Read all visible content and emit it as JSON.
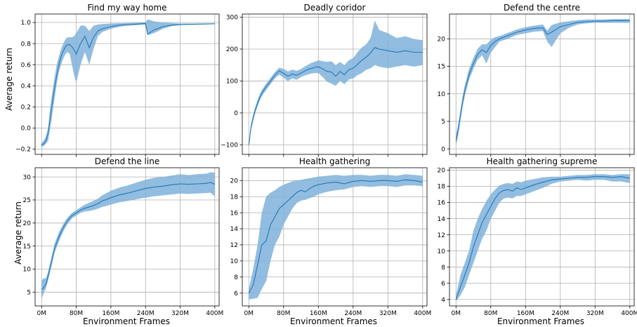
{
  "figure": {
    "xlabel": "Environment Frames",
    "ylabel": "Average return"
  },
  "chart_data": [
    {
      "type": "line",
      "title": "Find my way home",
      "xlim": [
        -15,
        410
      ],
      "ylim": [
        -0.25,
        1.08
      ],
      "yticks": [
        -0.2,
        0.0,
        0.2,
        0.4,
        0.6,
        0.8,
        1.0
      ],
      "ytick_labels": [
        "−0.2",
        "0.0",
        "0.2",
        "0.4",
        "0.6",
        "0.8",
        "1.0"
      ],
      "xticks": [
        0,
        80,
        160,
        240,
        320,
        400
      ],
      "xtick_labels": [],
      "grid": true,
      "series": [
        {
          "x": [
            0,
            5,
            10,
            15,
            20,
            25,
            30,
            35,
            40,
            45,
            50,
            55,
            60,
            65,
            70,
            75,
            80,
            90,
            100,
            110,
            120,
            130,
            140,
            160,
            180,
            200,
            220,
            240,
            245,
            260,
            280,
            300,
            320,
            340,
            360,
            380,
            400
          ],
          "y": [
            -0.16,
            -0.15,
            -0.12,
            -0.05,
            0.1,
            0.25,
            0.38,
            0.5,
            0.6,
            0.68,
            0.73,
            0.77,
            0.79,
            0.79,
            0.77,
            0.74,
            0.7,
            0.8,
            0.87,
            0.76,
            0.86,
            0.92,
            0.94,
            0.96,
            0.975,
            0.98,
            0.985,
            0.99,
            0.89,
            0.93,
            0.96,
            0.975,
            0.98,
            0.982,
            0.984,
            0.986,
            0.988
          ],
          "lower": [
            -0.18,
            -0.17,
            -0.15,
            -0.12,
            0.0,
            0.14,
            0.28,
            0.42,
            0.53,
            0.6,
            0.66,
            0.7,
            0.72,
            0.7,
            0.6,
            0.5,
            0.43,
            0.6,
            0.72,
            0.6,
            0.75,
            0.87,
            0.91,
            0.94,
            0.96,
            0.97,
            0.975,
            0.98,
            0.88,
            0.9,
            0.94,
            0.965,
            0.975,
            0.978,
            0.98,
            0.982,
            0.984
          ],
          "upper": [
            -0.14,
            -0.12,
            -0.08,
            0.0,
            0.2,
            0.35,
            0.48,
            0.6,
            0.68,
            0.75,
            0.8,
            0.84,
            0.86,
            0.86,
            0.86,
            0.87,
            0.9,
            0.97,
            0.97,
            0.92,
            0.97,
            0.98,
            0.985,
            0.99,
            0.993,
            0.995,
            0.997,
            1.0,
            1.03,
            1.01,
            1.0,
            0.995,
            0.99,
            0.99,
            0.99,
            0.99,
            0.99
          ]
        }
      ]
    },
    {
      "type": "line",
      "title": "Deadly coridor",
      "xlim": [
        -15,
        410
      ],
      "ylim": [
        -130,
        310
      ],
      "yticks": [
        -100,
        0,
        100,
        200,
        300
      ],
      "ytick_labels": [
        "−100",
        "0",
        "100",
        "200",
        "300"
      ],
      "xticks": [
        0,
        80,
        160,
        240,
        320,
        400
      ],
      "xtick_labels": [],
      "grid": true,
      "series": [
        {
          "x": [
            0,
            5,
            10,
            15,
            20,
            25,
            30,
            40,
            50,
            60,
            70,
            80,
            90,
            100,
            110,
            120,
            130,
            140,
            150,
            160,
            170,
            180,
            190,
            200,
            210,
            220,
            230,
            240,
            250,
            260,
            270,
            280,
            290,
            300,
            320,
            340,
            360,
            380,
            400
          ],
          "y": [
            -100,
            -45,
            -15,
            10,
            30,
            48,
            62,
            82,
            100,
            118,
            132,
            124,
            115,
            122,
            118,
            125,
            132,
            138,
            142,
            145,
            138,
            130,
            128,
            115,
            130,
            120,
            135,
            140,
            152,
            165,
            175,
            188,
            205,
            200,
            195,
            190,
            195,
            190,
            190
          ],
          "lower": [
            -105,
            -55,
            -25,
            0,
            20,
            38,
            52,
            72,
            90,
            108,
            120,
            110,
            100,
            108,
            104,
            112,
            118,
            122,
            125,
            125,
            112,
            98,
            92,
            85,
            100,
            90,
            105,
            108,
            118,
            125,
            135,
            140,
            150,
            145,
            140,
            145,
            150,
            145,
            150
          ],
          "upper": [
            -95,
            -35,
            -5,
            20,
            40,
            58,
            72,
            92,
            110,
            128,
            142,
            138,
            130,
            136,
            132,
            138,
            146,
            154,
            160,
            165,
            162,
            160,
            162,
            150,
            160,
            150,
            165,
            172,
            190,
            205,
            215,
            235,
            290,
            260,
            250,
            235,
            240,
            232,
            228
          ]
        }
      ]
    },
    {
      "type": "line",
      "title": "Defend the centre",
      "xlim": [
        -15,
        410
      ],
      "ylim": [
        -1,
        24.5
      ],
      "yticks": [
        0,
        5,
        10,
        15,
        20
      ],
      "ytick_labels": [
        "0",
        "5",
        "10",
        "15",
        "20"
      ],
      "xticks": [
        0,
        80,
        160,
        240,
        320,
        400
      ],
      "xtick_labels": [],
      "grid": true,
      "series": [
        {
          "x": [
            0,
            5,
            10,
            15,
            20,
            30,
            40,
            50,
            60,
            70,
            80,
            90,
            100,
            120,
            140,
            160,
            180,
            200,
            210,
            220,
            240,
            260,
            280,
            300,
            320,
            340,
            360,
            380,
            400
          ],
          "y": [
            1.5,
            3.5,
            6,
            8.5,
            10.5,
            13.5,
            15.5,
            17.2,
            18,
            17.5,
            18.8,
            19.5,
            20,
            20.6,
            21.2,
            21.6,
            21.9,
            22,
            20.8,
            21.2,
            22.2,
            22.6,
            23,
            23.1,
            23.2,
            23.2,
            23.3,
            23.3,
            23.3
          ],
          "lower": [
            0.5,
            2.5,
            5,
            7.5,
            9.5,
            12.5,
            14.5,
            16.2,
            17,
            15.5,
            17.5,
            18.5,
            19.5,
            20,
            20.7,
            21,
            21.3,
            21.4,
            19.5,
            18.5,
            21,
            22,
            22.6,
            22.8,
            22.9,
            22.9,
            22.9,
            22.9,
            22.9
          ],
          "upper": [
            2.5,
            4.5,
            7,
            9.5,
            11.5,
            14.5,
            16.5,
            18.2,
            19,
            19,
            19.8,
            20.3,
            20.5,
            21.1,
            21.7,
            22.1,
            22.4,
            22.6,
            21.5,
            22.5,
            23,
            23.2,
            23.4,
            23.5,
            23.5,
            23.5,
            23.6,
            23.6,
            23.6
          ]
        }
      ]
    },
    {
      "type": "line",
      "title": "Defend the line",
      "xlim": [
        -15,
        410
      ],
      "ylim": [
        2,
        32
      ],
      "yticks": [
        5,
        10,
        15,
        20,
        25,
        30
      ],
      "ytick_labels": [
        "5",
        "10",
        "15",
        "20",
        "25",
        "30"
      ],
      "xticks": [
        0,
        80,
        160,
        240,
        320,
        400
      ],
      "xtick_labels": [
        "0M",
        "80M",
        "160M",
        "240M",
        "320M",
        "400M"
      ],
      "grid": true,
      "series": [
        {
          "x": [
            0,
            5,
            10,
            15,
            20,
            25,
            30,
            40,
            50,
            60,
            70,
            80,
            90,
            100,
            110,
            120,
            130,
            140,
            150,
            160,
            180,
            200,
            220,
            240,
            260,
            280,
            300,
            320,
            340,
            360,
            380,
            390,
            400
          ],
          "y": [
            5.5,
            6,
            6.8,
            8.5,
            10.5,
            12.5,
            14.5,
            17,
            19,
            20.5,
            21.6,
            22.2,
            22.8,
            23.2,
            23.5,
            23.8,
            24.2,
            24.8,
            25.1,
            25.5,
            26.1,
            26.5,
            27,
            27.5,
            27.8,
            28,
            28.3,
            28.5,
            28.4,
            28.5,
            28.6,
            28.8,
            28.4
          ],
          "lower": [
            3.5,
            4.8,
            5.8,
            7.5,
            9.5,
            11.5,
            13.5,
            16,
            18.2,
            19.8,
            21,
            21.6,
            22.2,
            22.5,
            22.6,
            22.8,
            23.1,
            23.5,
            23.7,
            24,
            24.5,
            24.8,
            25.2,
            25.5,
            25.8,
            26,
            26.2,
            26.4,
            26.3,
            26.4,
            26.5,
            26.6,
            25.8
          ],
          "upper": [
            7.5,
            8,
            8,
            9.5,
            11.5,
            13.5,
            15.5,
            18,
            19.8,
            21.2,
            22.2,
            22.8,
            23.4,
            24,
            24.4,
            24.8,
            25.3,
            26,
            26.5,
            27,
            27.7,
            28.2,
            28.8,
            29.4,
            29.8,
            30,
            30.3,
            30.6,
            30.4,
            30.6,
            30.7,
            31,
            31
          ]
        }
      ]
    },
    {
      "type": "line",
      "title": "Health gathering",
      "xlim": [
        -15,
        410
      ],
      "ylim": [
        4.4,
        21.6
      ],
      "yticks": [
        6,
        8,
        10,
        12,
        14,
        16,
        18,
        20
      ],
      "ytick_labels": [
        "6",
        "8",
        "10",
        "12",
        "14",
        "16",
        "18",
        "20"
      ],
      "xticks": [
        0,
        80,
        160,
        240,
        320,
        400
      ],
      "xtick_labels": [
        "0M",
        "80M",
        "160M",
        "240M",
        "320M",
        "400M"
      ],
      "grid": true,
      "series": [
        {
          "x": [
            0,
            10,
            20,
            30,
            40,
            50,
            60,
            70,
            80,
            90,
            100,
            110,
            120,
            130,
            140,
            150,
            160,
            180,
            200,
            220,
            240,
            260,
            280,
            300,
            320,
            340,
            360,
            380,
            400
          ],
          "y": [
            6,
            7,
            9.5,
            12,
            12.5,
            14.5,
            15.5,
            16.5,
            17,
            17.5,
            18,
            18.5,
            18.8,
            18.6,
            19,
            19.3,
            19.5,
            19.7,
            19.8,
            19.6,
            19.9,
            20,
            19.9,
            20,
            20,
            19.9,
            20.1,
            20,
            19.8
          ],
          "lower": [
            5.2,
            5.3,
            5.4,
            6.5,
            7.5,
            10,
            12,
            13,
            14.5,
            15.5,
            16.5,
            17.2,
            17.5,
            17.6,
            17.8,
            18,
            18.3,
            18.6,
            18.8,
            18.9,
            19.2,
            19.3,
            19.2,
            19.3,
            19.3,
            19.2,
            19.4,
            19.4,
            19.3
          ],
          "upper": [
            6.5,
            9,
            12,
            16,
            18,
            18.5,
            18.8,
            19.2,
            19.5,
            19.7,
            19.9,
            20,
            20.1,
            20.2,
            20.3,
            20.4,
            20.5,
            20.6,
            20.7,
            20.6,
            20.7,
            20.7,
            20.6,
            20.7,
            20.7,
            20.6,
            20.8,
            20.7,
            20.6
          ]
        }
      ]
    },
    {
      "type": "line",
      "title": "Health gathering supreme",
      "xlim": [
        -15,
        410
      ],
      "ylim": [
        3.2,
        20.3
      ],
      "yticks": [
        4,
        6,
        8,
        10,
        12,
        14,
        16,
        18,
        20
      ],
      "ytick_labels": [
        "4",
        "6",
        "8",
        "10",
        "12",
        "14",
        "16",
        "18",
        "20"
      ],
      "xticks": [
        0,
        80,
        160,
        240,
        320,
        400
      ],
      "xtick_labels": [
        "0M",
        "80M",
        "160M",
        "240M",
        "320M",
        "400M"
      ],
      "grid": true,
      "series": [
        {
          "x": [
            0,
            10,
            20,
            30,
            40,
            50,
            60,
            70,
            80,
            90,
            100,
            110,
            120,
            130,
            140,
            150,
            160,
            180,
            200,
            220,
            240,
            260,
            280,
            300,
            320,
            340,
            360,
            380,
            400
          ],
          "y": [
            4,
            5.5,
            7,
            8.5,
            10.5,
            12,
            13.5,
            14.5,
            15.5,
            16.5,
            17.2,
            17.5,
            17.6,
            17.4,
            17.8,
            17.6,
            17.8,
            18.2,
            18.5,
            18.8,
            18.9,
            19,
            19.1,
            19.1,
            19.2,
            19.2,
            19.1,
            19.2,
            19
          ],
          "lower": [
            3.8,
            4.5,
            5.5,
            7,
            8.5,
            10,
            11.5,
            12.5,
            14,
            15,
            16,
            16.5,
            16.6,
            16.5,
            16.8,
            16.8,
            17,
            17.4,
            17.8,
            18.3,
            18.6,
            18.7,
            18.8,
            18.7,
            18.8,
            18.8,
            18.6,
            18.6,
            18.4
          ],
          "upper": [
            4.5,
            7,
            8.5,
            10,
            12.5,
            14,
            15.2,
            16.2,
            17,
            17.6,
            18.1,
            18.3,
            18.4,
            18.3,
            18.6,
            18.5,
            18.7,
            18.9,
            19.1,
            19.2,
            19.2,
            19.3,
            19.4,
            19.4,
            19.5,
            19.5,
            19.4,
            19.5,
            19.5
          ]
        }
      ]
    }
  ]
}
